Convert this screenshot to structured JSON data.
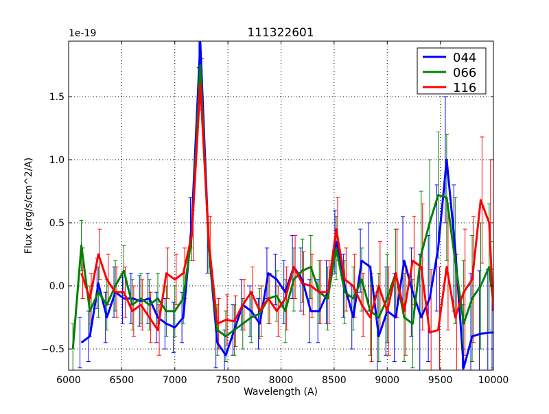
{
  "chart_data": {
    "type": "line",
    "title": "111322601",
    "xlabel": "Wavelength (A)",
    "ylabel": "Flux (erg/s/cm^2/A)",
    "y_offset_label": "1e-19",
    "xlim": [
      6000,
      10000
    ],
    "ylim": [
      -0.668,
      1.94
    ],
    "xticks": [
      6000,
      6500,
      7000,
      7500,
      8000,
      8500,
      9000,
      9500,
      10000
    ],
    "xtick_labels": [
      "6000",
      "6500",
      "7000",
      "7500",
      "8000",
      "8500",
      "9000",
      "9500",
      "10000"
    ],
    "yticks": [
      -0.5,
      0.0,
      0.5,
      1.0,
      1.5
    ],
    "ytick_labels": [
      "−0.5",
      "0.0",
      "0.5",
      "1.0",
      "1.5"
    ],
    "grid": true,
    "legend_position": "top-right",
    "x": [
      6040,
      6120,
      6200,
      6280,
      6360,
      6440,
      6520,
      6600,
      6680,
      6760,
      6840,
      6920,
      7000,
      7080,
      7160,
      7240,
      7320,
      7400,
      7480,
      7560,
      7640,
      7720,
      7800,
      7880,
      7960,
      8040,
      8120,
      8200,
      8280,
      8360,
      8440,
      8520,
      8600,
      8680,
      8760,
      8840,
      8920,
      9000,
      9080,
      9160,
      9240,
      9320,
      9400,
      9480,
      9560,
      9640,
      9720,
      9800,
      9880,
      9960,
      10000
    ],
    "err": [
      0.2,
      0.2,
      0.2,
      0.2,
      0.2,
      0.2,
      0.2,
      0.2,
      0.2,
      0.2,
      0.2,
      0.2,
      0.2,
      0.2,
      0.2,
      0.2,
      0.2,
      0.2,
      0.2,
      0.2,
      0.2,
      0.2,
      0.2,
      0.2,
      0.2,
      0.25,
      0.25,
      0.25,
      0.25,
      0.25,
      0.25,
      0.25,
      0.25,
      0.25,
      0.25,
      0.35,
      0.35,
      0.35,
      0.35,
      0.35,
      0.35,
      0.5,
      0.5,
      0.5,
      0.5,
      0.5,
      0.5,
      0.5,
      0.5,
      0.5,
      0.5
    ],
    "series": [
      {
        "name": "044",
        "color": "#0000ff",
        "values": [
          null,
          -0.45,
          -0.4,
          0.02,
          -0.25,
          -0.05,
          -0.1,
          -0.1,
          -0.12,
          -0.1,
          -0.25,
          -0.3,
          -0.33,
          -0.25,
          0.5,
          1.93,
          0.3,
          -0.45,
          -0.55,
          -0.35,
          -0.15,
          -0.2,
          -0.3,
          0.1,
          0.05,
          -0.05,
          0.15,
          0.05,
          -0.2,
          -0.2,
          -0.05,
          0.35,
          0.0,
          -0.25,
          0.2,
          0.15,
          -0.4,
          -0.2,
          -0.25,
          0.2,
          -0.05,
          -0.25,
          -0.1,
          0.3,
          1.0,
          0.3,
          -0.65,
          -0.4,
          -0.38,
          -0.37,
          -0.37
        ]
      },
      {
        "name": "066",
        "color": "#008000",
        "values": [
          -0.5,
          0.32,
          -0.2,
          -0.05,
          -0.15,
          0.0,
          0.12,
          -0.15,
          -0.1,
          -0.15,
          -0.1,
          -0.2,
          -0.2,
          -0.1,
          0.4,
          1.75,
          0.3,
          -0.35,
          -0.4,
          -0.35,
          -0.3,
          -0.25,
          -0.22,
          -0.1,
          -0.08,
          -0.2,
          0.05,
          0.12,
          0.15,
          -0.05,
          -0.1,
          0.3,
          -0.05,
          -0.1,
          0.05,
          -0.2,
          -0.25,
          -0.1,
          0.1,
          -0.25,
          -0.3,
          0.25,
          0.5,
          0.72,
          0.7,
          0.2,
          -0.3,
          -0.1,
          0.0,
          0.15,
          -0.15
        ]
      },
      {
        "name": "116",
        "color": "#ff0000",
        "values": [
          null,
          0.1,
          -0.1,
          0.25,
          0.05,
          -0.05,
          -0.05,
          -0.2,
          -0.15,
          -0.25,
          -0.35,
          0.1,
          0.05,
          0.1,
          0.4,
          1.6,
          0.35,
          -0.3,
          -0.27,
          -0.28,
          -0.15,
          -0.05,
          -0.2,
          -0.1,
          -0.2,
          -0.1,
          0.15,
          0.02,
          0.0,
          -0.05,
          -0.05,
          0.45,
          0.05,
          0.0,
          -0.15,
          -0.25,
          0.0,
          -0.2,
          0.1,
          -0.2,
          0.2,
          0.15,
          -0.37,
          -0.35,
          0.15,
          -0.25,
          -0.05,
          0.05,
          0.68,
          0.5,
          -0.2
        ]
      }
    ]
  }
}
